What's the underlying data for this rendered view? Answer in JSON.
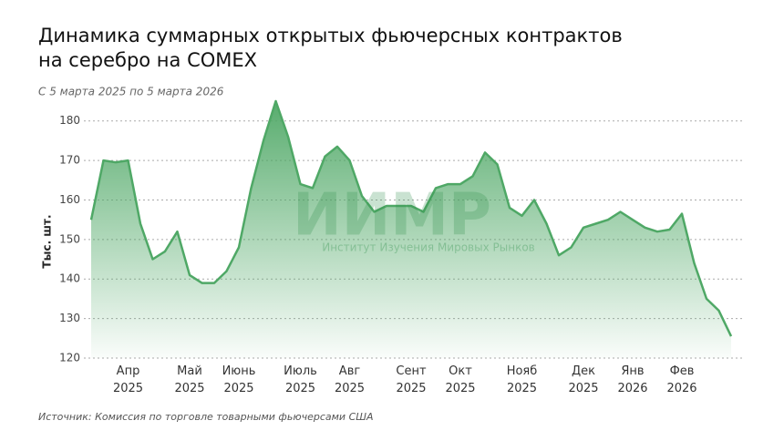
{
  "chart_data": {
    "type": "area",
    "title_lines": [
      "Динамика суммарных открытых фьючерсных контрактов",
      "на серебро на COMEX"
    ],
    "subtitle": "С 5 марта 2025 по 5 марта 2026",
    "y_label": "Тыс. шт.",
    "source": "Источник: Комиссия по торговле товарными фьючерсами США",
    "watermark": {
      "logo": "ИИМР",
      "text": "Институт Изучения Мировых Рынков"
    },
    "color": "#4fa866",
    "categories": [
      null,
      null,
      null,
      "Апр 2025",
      null,
      null,
      null,
      null,
      "Май 2025",
      null,
      null,
      null,
      "Июнь 2025",
      null,
      null,
      null,
      null,
      "Июль 2025",
      null,
      null,
      null,
      "Авг 2025",
      null,
      null,
      null,
      null,
      "Сент 2025",
      null,
      null,
      null,
      "Окт 2025",
      null,
      null,
      null,
      null,
      "Нояб 2025",
      null,
      null,
      null,
      null,
      "Дек 2025",
      null,
      null,
      null,
      "Янв 2026",
      null,
      null,
      null,
      "Фев 2026",
      null,
      null,
      null,
      null
    ],
    "values": [
      155,
      170,
      169.5,
      170,
      154,
      145,
      147,
      152,
      141,
      139,
      139,
      142,
      148,
      163,
      175,
      185,
      176,
      164,
      163,
      171,
      173.5,
      170,
      161,
      157,
      158.5,
      158.5,
      158.5,
      157,
      163,
      164,
      164,
      166,
      172,
      169,
      158,
      156,
      160,
      154,
      146,
      148,
      153,
      154,
      155,
      157,
      155,
      153,
      152,
      152.5,
      156.5,
      144,
      135,
      132,
      125.5
    ],
    "ylim": [
      120,
      185
    ],
    "yticks": [
      120,
      130,
      140,
      150,
      160,
      170,
      180
    ],
    "grid": true
  }
}
